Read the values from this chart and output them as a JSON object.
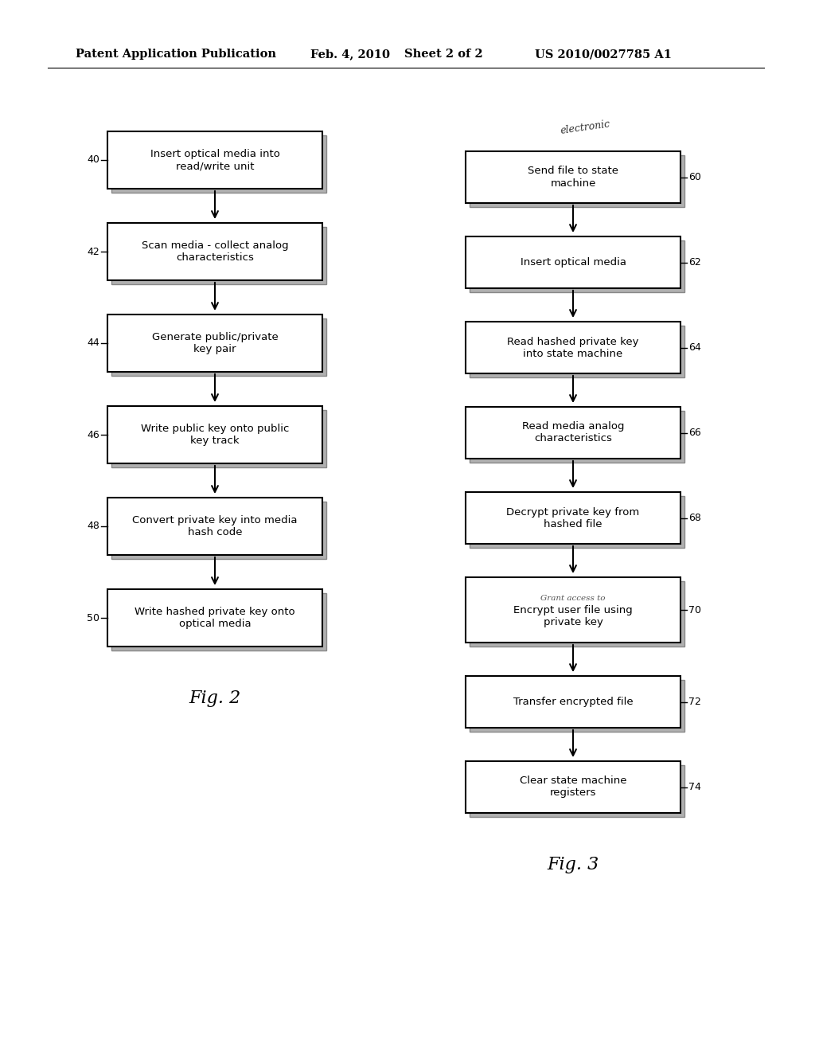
{
  "bg_color": "#ffffff",
  "header_line1": "Patent Application Publication",
  "header_date": "Feb. 4, 2010",
  "header_sheet": "Sheet 2 of 2",
  "header_patent": "US 2010/0027785 A1",
  "left_boxes": [
    {
      "label": "Insert optical media into\nread/write unit",
      "num": "40"
    },
    {
      "label": "Scan media - collect analog\ncharacteristics",
      "num": "42"
    },
    {
      "label": "Generate public/private\nkey pair",
      "num": "44"
    },
    {
      "label": "Write public key onto public\nkey track",
      "num": "46"
    },
    {
      "label": "Convert private key into media\nhash code",
      "num": "48"
    },
    {
      "label": "Write hashed private key onto\noptical media",
      "num": "50"
    }
  ],
  "right_boxes": [
    {
      "label": "Send file to state\nmachine",
      "num": "60"
    },
    {
      "label": "Insert optical media",
      "num": "62"
    },
    {
      "label": "Read hashed private key\ninto state machine",
      "num": "64"
    },
    {
      "label": "Read media analog\ncharacteristics",
      "num": "66"
    },
    {
      "label": "Decrypt private key from\nhashed file",
      "num": "68"
    },
    {
      "label": "Encrypt user file using\nprivate key",
      "num": "70",
      "has_annotation": true,
      "annotation": "Grant access to"
    },
    {
      "label": "Transfer encrypted file",
      "num": "72"
    },
    {
      "label": "Clear state machine\nregisters",
      "num": "74"
    }
  ],
  "right_top_annotation": "electronic",
  "fig2_caption": "Fig. 2",
  "fig3_caption": "Fig. 3"
}
